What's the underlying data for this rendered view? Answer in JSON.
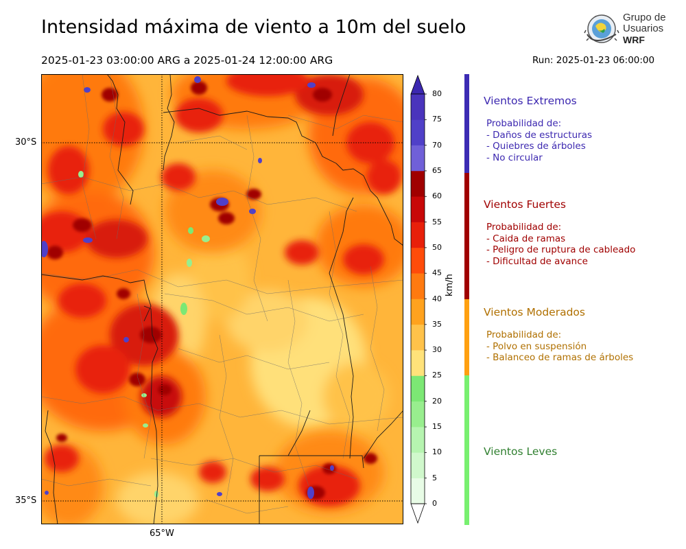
{
  "header": {
    "title": "Intensidad máxima de viento a 10m del suelo",
    "date_range": "2025-01-23 03:00:00 ARG  a  2025-01-24 12:00:00 ARG",
    "run": "Run: 2025-01-23 06:00:00"
  },
  "logo": {
    "line1": "Grupo de",
    "line2": "Usuarios",
    "line3": "WRF"
  },
  "map": {
    "lat_labels": [
      "30°S",
      "35°S"
    ],
    "lon_labels": [
      "65°W"
    ]
  },
  "colorbar": {
    "unit": "km/h",
    "ticks": [
      "0",
      "5",
      "10",
      "15",
      "20",
      "25",
      "30",
      "35",
      "40",
      "45",
      "50",
      "55",
      "60",
      "65",
      "70",
      "75",
      "80"
    ],
    "colors": [
      "#e8fce6",
      "#d0f8cc",
      "#b6f4b0",
      "#98ee8e",
      "#7ce874",
      "#ffe27a",
      "#ffc24a",
      "#ffa21e",
      "#ff7a10",
      "#ff4c0a",
      "#e8200a",
      "#c80808",
      "#a00000",
      "#7060d8",
      "#5040c8",
      "#4a34bc"
    ],
    "extend_top_color": "#3c28b0"
  },
  "legend": [
    {
      "title": "Vientos Extremos",
      "color": "#3c28b0",
      "bar_color": "#3c2cb4",
      "lines": [
        "Probabilidad de:",
        "- Daños de estructuras",
        "- Quiebres de árboles",
        "- No circular"
      ]
    },
    {
      "title": "Vientos Fuertes",
      "color": "#a00000",
      "bar_color": "#a00000",
      "lines": [
        "Probabilidad de:",
        "- Caida de ramas",
        "- Peligro de ruptura de cableado",
        "- Dificultad de avance"
      ]
    },
    {
      "title": "Vientos Moderados",
      "color": "#b07000",
      "bar_color": "#ffa010",
      "lines": [
        "Probabilidad de:",
        "- Polvo en suspensión",
        "- Balanceo de ramas de árboles"
      ]
    },
    {
      "title": "Vientos Leves",
      "color": "#2f7f2f",
      "bar_color": "#78f070",
      "lines": []
    }
  ]
}
